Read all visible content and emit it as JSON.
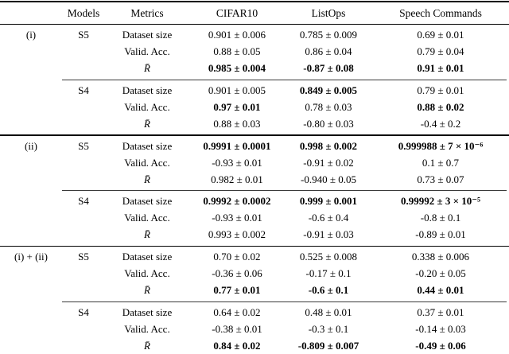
{
  "table": {
    "headers": {
      "empty": "",
      "models": "Models",
      "metrics": "Metrics",
      "cifar10": "CIFAR10",
      "listops": "ListOps",
      "speech": "Speech Commands"
    },
    "math_metric": "R̄",
    "groups": [
      {
        "label": "(i)",
        "blocks": [
          {
            "model": "S5",
            "rows": [
              {
                "m": "Dataset size",
                "c": [
                  {
                    "t": "0.901 ± 0.006",
                    "b": false
                  },
                  {
                    "t": "0.785 ± 0.009",
                    "b": false
                  },
                  {
                    "t": "0.69 ± 0.01",
                    "b": false
                  }
                ]
              },
              {
                "m": "Valid. Acc.",
                "c": [
                  {
                    "t": "0.88 ± 0.05",
                    "b": false
                  },
                  {
                    "t": "0.86 ± 0.04",
                    "b": false
                  },
                  {
                    "t": "0.79 ± 0.04",
                    "b": false
                  }
                ]
              },
              {
                "m": "R̄",
                "c": [
                  {
                    "t": "0.985 ± 0.004",
                    "b": true
                  },
                  {
                    "t": "-0.87 ± 0.08",
                    "b": true
                  },
                  {
                    "t": "0.91 ± 0.01",
                    "b": true
                  }
                ]
              }
            ]
          },
          {
            "model": "S4",
            "rows": [
              {
                "m": "Dataset size",
                "c": [
                  {
                    "t": "0.901 ± 0.005",
                    "b": false
                  },
                  {
                    "t": "0.849 ± 0.005",
                    "b": true
                  },
                  {
                    "t": "0.79 ± 0.01",
                    "b": false
                  }
                ]
              },
              {
                "m": "Valid. Acc.",
                "c": [
                  {
                    "t": "0.97 ± 0.01",
                    "b": true
                  },
                  {
                    "t": "0.78 ± 0.03",
                    "b": false
                  },
                  {
                    "t": "0.88 ± 0.02",
                    "b": true
                  }
                ]
              },
              {
                "m": "R̄",
                "c": [
                  {
                    "t": "0.88 ± 0.03",
                    "b": false
                  },
                  {
                    "t": "-0.80 ± 0.03",
                    "b": false
                  },
                  {
                    "t": "-0.4 ± 0.2",
                    "b": false
                  }
                ]
              }
            ]
          }
        ]
      },
      {
        "label": "(ii)",
        "blocks": [
          {
            "model": "S5",
            "rows": [
              {
                "m": "Dataset size",
                "c": [
                  {
                    "t": "0.9991 ± 0.0001",
                    "b": true
                  },
                  {
                    "t": "0.998 ± 0.002",
                    "b": true
                  },
                  {
                    "t": "0.999988 ± 7 × 10⁻⁶",
                    "b": true
                  }
                ]
              },
              {
                "m": "Valid. Acc.",
                "c": [
                  {
                    "t": "-0.93 ± 0.01",
                    "b": false
                  },
                  {
                    "t": "-0.91 ± 0.02",
                    "b": false
                  },
                  {
                    "t": "0.1 ± 0.7",
                    "b": false
                  }
                ]
              },
              {
                "m": "R̄",
                "c": [
                  {
                    "t": "0.982 ± 0.01",
                    "b": false
                  },
                  {
                    "t": "-0.940 ± 0.05",
                    "b": false
                  },
                  {
                    "t": "0.73 ± 0.07",
                    "b": false
                  }
                ]
              }
            ]
          },
          {
            "model": "S4",
            "rows": [
              {
                "m": "Dataset size",
                "c": [
                  {
                    "t": "0.9992 ± 0.0002",
                    "b": true
                  },
                  {
                    "t": "0.999 ± 0.001",
                    "b": true
                  },
                  {
                    "t": "0.99992 ± 3 × 10⁻⁵",
                    "b": true
                  }
                ]
              },
              {
                "m": "Valid. Acc.",
                "c": [
                  {
                    "t": "-0.93 ± 0.01",
                    "b": false
                  },
                  {
                    "t": "-0.6 ± 0.4",
                    "b": false
                  },
                  {
                    "t": "-0.8 ± 0.1",
                    "b": false
                  }
                ]
              },
              {
                "m": "R̄",
                "c": [
                  {
                    "t": "0.993 ± 0.002",
                    "b": false
                  },
                  {
                    "t": "-0.91 ± 0.03",
                    "b": false
                  },
                  {
                    "t": "-0.89 ± 0.01",
                    "b": false
                  }
                ]
              }
            ]
          }
        ]
      },
      {
        "label": "(i) + (ii)",
        "blocks": [
          {
            "model": "S5",
            "rows": [
              {
                "m": "Dataset size",
                "c": [
                  {
                    "t": "0.70 ± 0.02",
                    "b": false
                  },
                  {
                    "t": "0.525 ± 0.008",
                    "b": false
                  },
                  {
                    "t": "0.338 ± 0.006",
                    "b": false
                  }
                ]
              },
              {
                "m": "Valid. Acc.",
                "c": [
                  {
                    "t": "-0.36 ± 0.06",
                    "b": false
                  },
                  {
                    "t": "-0.17 ± 0.1",
                    "b": false
                  },
                  {
                    "t": "-0.20 ± 0.05",
                    "b": false
                  }
                ]
              },
              {
                "m": "R̄",
                "c": [
                  {
                    "t": "0.77 ± 0.01",
                    "b": true
                  },
                  {
                    "t": "-0.6 ± 0.1",
                    "b": true
                  },
                  {
                    "t": "0.44 ± 0.01",
                    "b": true
                  }
                ]
              }
            ]
          },
          {
            "model": "S4",
            "rows": [
              {
                "m": "Dataset size",
                "c": [
                  {
                    "t": "0.64 ± 0.02",
                    "b": false
                  },
                  {
                    "t": "0.48 ± 0.01",
                    "b": false
                  },
                  {
                    "t": "0.37 ± 0.01",
                    "b": false
                  }
                ]
              },
              {
                "m": "Valid. Acc.",
                "c": [
                  {
                    "t": "-0.38 ± 0.01",
                    "b": false
                  },
                  {
                    "t": "-0.3 ± 0.1",
                    "b": false
                  },
                  {
                    "t": "-0.14 ± 0.03",
                    "b": false
                  }
                ]
              },
              {
                "m": "R̄",
                "c": [
                  {
                    "t": "0.84 ± 0.02",
                    "b": true
                  },
                  {
                    "t": "-0.809 ± 0.007",
                    "b": true
                  },
                  {
                    "t": "-0.49 ± 0.06",
                    "b": true
                  }
                ]
              }
            ]
          }
        ]
      }
    ]
  }
}
